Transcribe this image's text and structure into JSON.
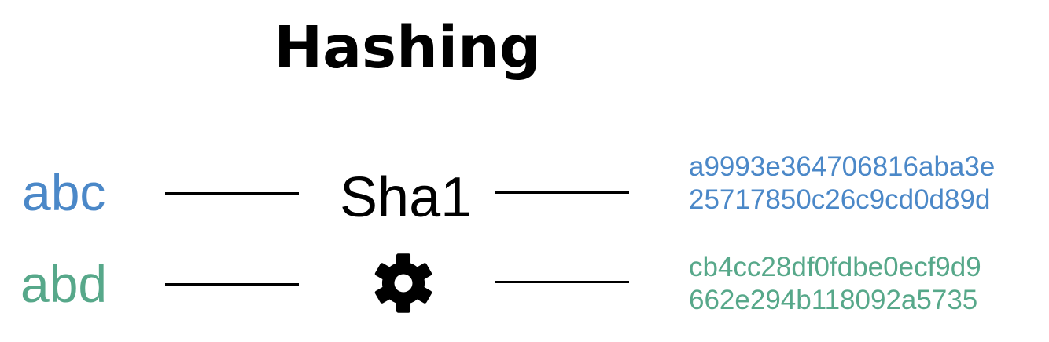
{
  "title": "Hashing",
  "algorithm": {
    "label": "Sha1",
    "icon": "gear-icon"
  },
  "rows": [
    {
      "input": "abc",
      "hash_lines": [
        "a9993e364706816aba3e",
        "25717850c26c9cd0d89d"
      ],
      "color": "#4b88c8"
    },
    {
      "input": "abd",
      "hash_lines": [
        "cb4cc28df0fdbe0ecf9d9",
        "662e294b118092a5735"
      ],
      "color": "#57a88a"
    }
  ]
}
